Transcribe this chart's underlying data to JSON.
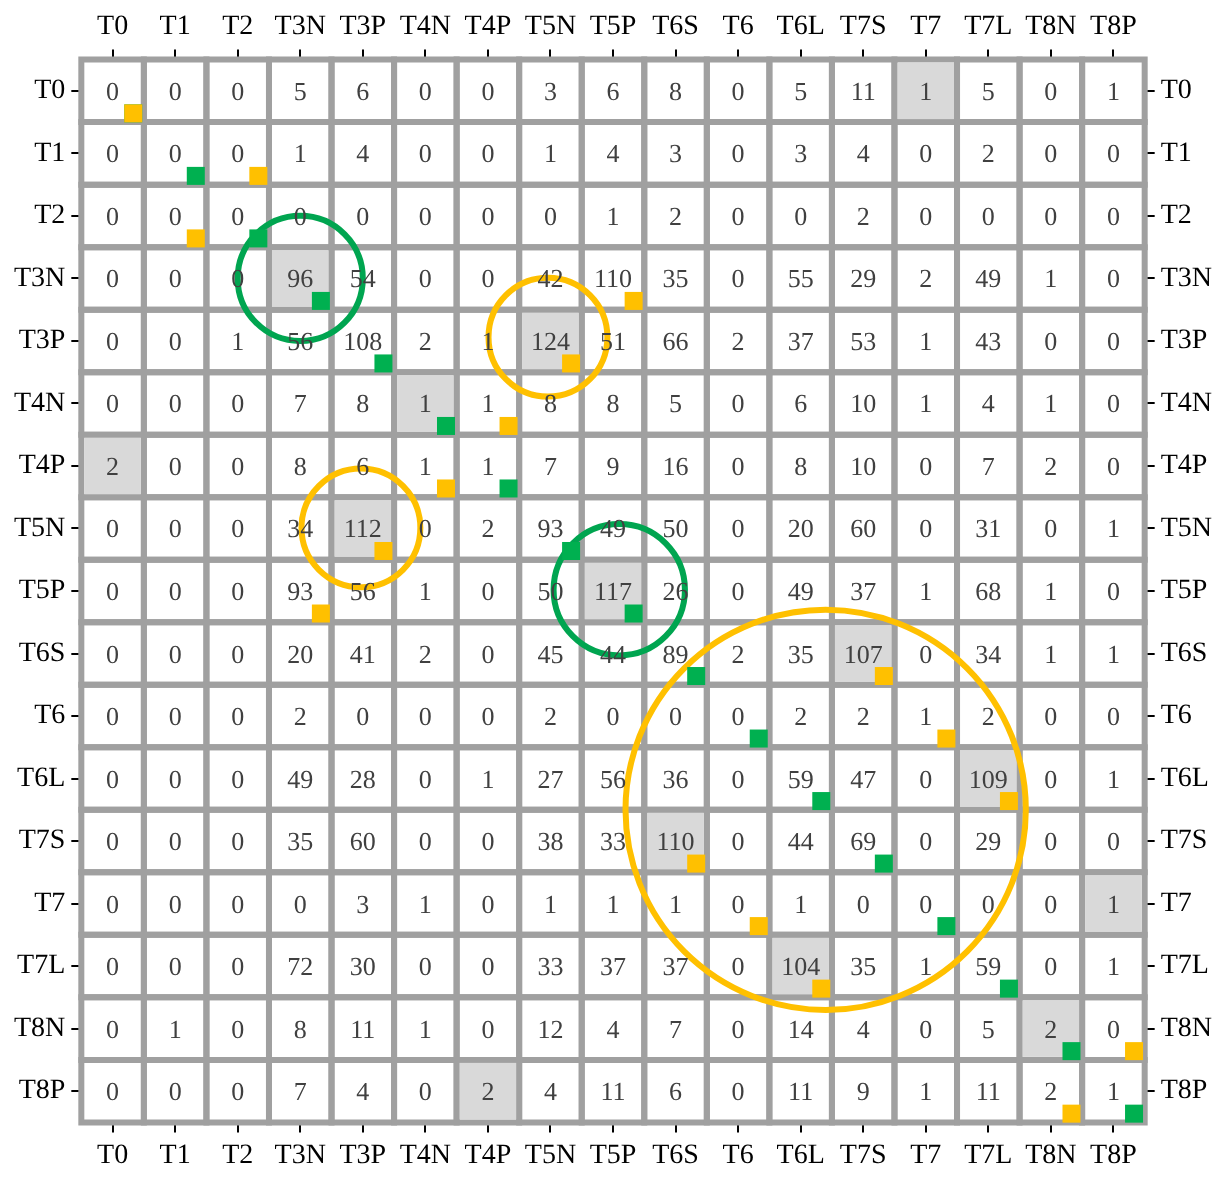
{
  "chart_data": {
    "type": "heatmap",
    "categories": [
      "T0",
      "T1",
      "T2",
      "T3N",
      "T3P",
      "T4N",
      "T4P",
      "T5N",
      "T5P",
      "T6S",
      "T6",
      "T6L",
      "T7S",
      "T7",
      "T7L",
      "T8N",
      "T8P"
    ],
    "y_categories": [
      "T0",
      "T1",
      "T2",
      "T3N",
      "T3P",
      "T4N",
      "T4P",
      "T5N",
      "T5P",
      "T6S",
      "T6",
      "T6L",
      "T7S",
      "T7",
      "T7L",
      "T8N",
      "T8P"
    ],
    "y2_categories": [
      "T0",
      "T1",
      "T2",
      "T3N",
      "T3P",
      "T4N",
      "T4P",
      "T5N",
      "T5P",
      "T6S",
      "T6",
      "T6L",
      "T7S",
      "T7",
      "T7L",
      "T8N",
      "T8P"
    ],
    "cells": [
      [
        0,
        0,
        0,
        5,
        6,
        0,
        0,
        3,
        6,
        8,
        0,
        5,
        11,
        1,
        5,
        0,
        1
      ],
      [
        0,
        0,
        0,
        1,
        4,
        0,
        0,
        1,
        4,
        3,
        0,
        3,
        4,
        0,
        2,
        0,
        0
      ],
      [
        0,
        0,
        0,
        0,
        0,
        0,
        0,
        0,
        1,
        2,
        0,
        0,
        2,
        0,
        0,
        0,
        0
      ],
      [
        0,
        0,
        0,
        96,
        54,
        0,
        0,
        42,
        110,
        35,
        0,
        55,
        29,
        2,
        49,
        1,
        0
      ],
      [
        0,
        0,
        1,
        56,
        108,
        2,
        1,
        124,
        51,
        66,
        2,
        37,
        53,
        1,
        43,
        0,
        0
      ],
      [
        0,
        0,
        0,
        7,
        8,
        1,
        1,
        8,
        8,
        5,
        0,
        6,
        10,
        1,
        4,
        1,
        0
      ],
      [
        2,
        0,
        0,
        8,
        6,
        1,
        1,
        7,
        9,
        16,
        0,
        8,
        10,
        0,
        7,
        2,
        0
      ],
      [
        0,
        0,
        0,
        34,
        112,
        0,
        2,
        93,
        49,
        50,
        0,
        20,
        60,
        0,
        31,
        0,
        1
      ],
      [
        0,
        0,
        0,
        93,
        56,
        1,
        0,
        50,
        117,
        26,
        0,
        49,
        37,
        1,
        68,
        1,
        0
      ],
      [
        0,
        0,
        0,
        20,
        41,
        2,
        0,
        45,
        44,
        89,
        2,
        35,
        107,
        0,
        34,
        1,
        1
      ],
      [
        0,
        0,
        0,
        2,
        0,
        0,
        0,
        2,
        0,
        0,
        0,
        2,
        2,
        1,
        2,
        0,
        0
      ],
      [
        0,
        0,
        0,
        49,
        28,
        0,
        1,
        27,
        56,
        36,
        0,
        59,
        47,
        0,
        109,
        0,
        1
      ],
      [
        0,
        0,
        0,
        35,
        60,
        0,
        0,
        38,
        33,
        110,
        0,
        44,
        69,
        0,
        29,
        0,
        0
      ],
      [
        0,
        0,
        0,
        0,
        3,
        1,
        0,
        1,
        1,
        1,
        0,
        1,
        0,
        0,
        0,
        0,
        1
      ],
      [
        0,
        0,
        0,
        72,
        30,
        0,
        0,
        33,
        37,
        37,
        0,
        104,
        35,
        1,
        59,
        0,
        1
      ],
      [
        0,
        1,
        0,
        8,
        11,
        1,
        0,
        12,
        4,
        7,
        0,
        14,
        4,
        0,
        5,
        2,
        0
      ],
      [
        0,
        0,
        0,
        7,
        4,
        0,
        2,
        4,
        11,
        6,
        0,
        11,
        9,
        1,
        11,
        2,
        1
      ]
    ],
    "data_labels": true
  }
}
